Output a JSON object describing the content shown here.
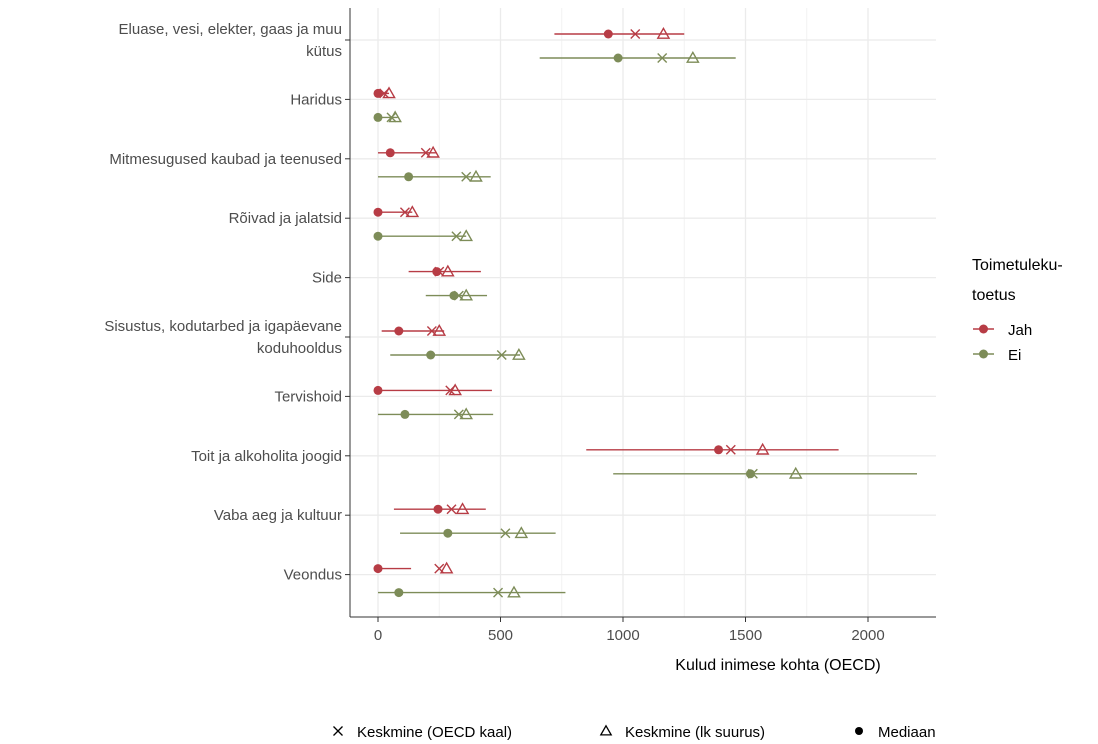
{
  "chart_data": {
    "type": "dot-interval",
    "xlabel": "Kulud inimese kohta (OECD)",
    "ylabel": "",
    "xlim": [
      -100,
      2270
    ],
    "x_ticks": [
      0,
      500,
      1000,
      1500,
      2000
    ],
    "grid": true,
    "legend_placement": "right",
    "categories": [
      "Eluase, vesi, elekter, gaas ja muu kütus",
      "Haridus",
      "Mitmesugused kaubad ja teenused",
      "Rõivad ja jalatsid",
      "Side",
      "Sisustus, kodutarbed ja igapäevane koduhooldus",
      "Tervishoid",
      "Toit ja alkoholita joogid",
      "Vaba aeg ja kultuur",
      "Veondus"
    ],
    "category_lines": [
      [
        "Eluase, vesi, elekter, gaas ja muu",
        "kütus"
      ],
      [
        "Haridus"
      ],
      [
        "Mitmesugused kaubad ja teenused"
      ],
      [
        "Rõivad ja jalatsid"
      ],
      [
        "Side"
      ],
      [
        "Sisustus, kodutarbed ja igapäevane",
        "koduhooldus"
      ],
      [
        "Tervishoid"
      ],
      [
        "Toit ja alkoholita joogid"
      ],
      [
        "Vaba aeg ja kultuur"
      ],
      [
        "Veondus"
      ]
    ],
    "color_legend": {
      "title_lines": [
        "Toimetuleku-",
        "toetus"
      ],
      "items": [
        {
          "label": "Jah",
          "color": "#b73c45"
        },
        {
          "label": "Ei",
          "color": "#7d8c58"
        }
      ]
    },
    "shape_legend": [
      {
        "symbol": "×",
        "label": "Keskmine (OECD kaal)"
      },
      {
        "symbol": "△",
        "label": "Keskmine (lk suurus)"
      },
      {
        "symbol": "●",
        "label": "Mediaan"
      }
    ],
    "series": [
      {
        "name": "Jah",
        "color": "#b73c45",
        "low": [
          720,
          0,
          0,
          0,
          125,
          15,
          0,
          850,
          65,
          0
        ],
        "high": [
          1250,
          45,
          240,
          140,
          420,
          270,
          465,
          1880,
          440,
          135
        ],
        "median": [
          940,
          0,
          50,
          0,
          240,
          85,
          0,
          1390,
          245,
          0
        ],
        "mean_oecd": [
          1050,
          25,
          195,
          110,
          250,
          220,
          295,
          1440,
          300,
          250
        ],
        "mean_household": [
          1165,
          45,
          225,
          140,
          285,
          250,
          315,
          1570,
          345,
          280
        ]
      },
      {
        "name": "Ei",
        "color": "#7d8c58",
        "low": [
          660,
          0,
          0,
          0,
          195,
          50,
          0,
          960,
          90,
          0
        ],
        "high": [
          1460,
          80,
          460,
          360,
          445,
          580,
          470,
          2200,
          725,
          765
        ],
        "median": [
          980,
          0,
          125,
          0,
          310,
          215,
          110,
          1520,
          285,
          85
        ],
        "mean_oecd": [
          1160,
          55,
          360,
          320,
          330,
          505,
          330,
          1530,
          520,
          490
        ],
        "mean_household": [
          1285,
          70,
          400,
          360,
          360,
          575,
          360,
          1705,
          585,
          555
        ]
      }
    ]
  }
}
